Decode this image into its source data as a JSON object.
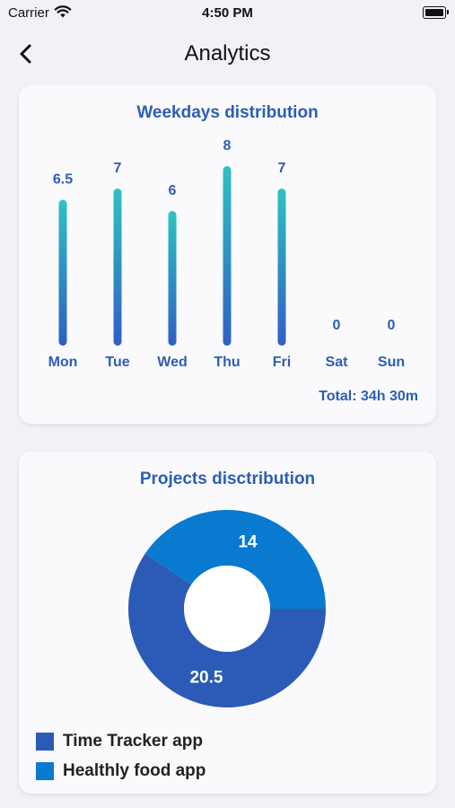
{
  "status_bar": {
    "carrier": "Carrier",
    "time": "4:50 PM"
  },
  "nav": {
    "title": "Analytics",
    "back_icon": "chevron-left-icon"
  },
  "weekdays": {
    "title": "Weekdays distribution",
    "total": "Total: 34h 30m"
  },
  "projects": {
    "title": "Projects disctribution",
    "legend": [
      {
        "label": "Time Tracker app",
        "color": "#2b5bb7"
      },
      {
        "label": "Healthly food app",
        "color": "#0a7ad1"
      }
    ]
  },
  "chart_data": [
    {
      "type": "bar",
      "title": "Weekdays distribution",
      "categories": [
        "Mon",
        "Tue",
        "Wed",
        "Thu",
        "Fri",
        "Sat",
        "Sun"
      ],
      "values": [
        6.5,
        7,
        6,
        8,
        7,
        0,
        0
      ],
      "value_labels": [
        "6.5",
        "7",
        "6",
        "8",
        "7",
        "0",
        "0"
      ],
      "gradient": [
        "#2fc2c1",
        "#2f5fc4"
      ],
      "label_color": "#2d5db5",
      "ylim": [
        0,
        8
      ]
    },
    {
      "type": "pie",
      "title": "Projects disctribution",
      "categories": [
        "Time Tracker app",
        "Healthly food app"
      ],
      "values": [
        20.5,
        14
      ],
      "value_labels": [
        "20.5",
        "14"
      ],
      "colors": [
        "#2b5bb7",
        "#0a7ad1"
      ],
      "donut": true
    }
  ]
}
